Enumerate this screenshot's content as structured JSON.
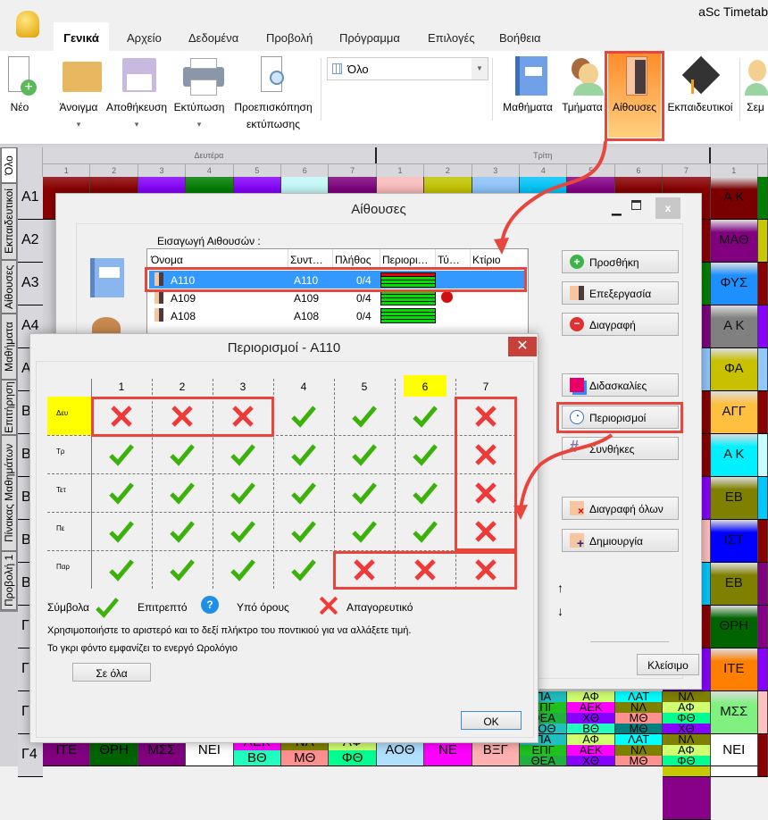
{
  "app": {
    "title": "aSc Timetab"
  },
  "tabs": [
    "Γενικά",
    "Αρχείο",
    "Δεδομένα",
    "Προβολή",
    "Πρόγραμμα",
    "Επιλογές",
    "Βοήθεια"
  ],
  "ribbon": {
    "buttons": [
      {
        "label": "Νέο",
        "icon": "new-file-icon"
      },
      {
        "label": "Άνοιγμα",
        "icon": "folder-icon",
        "drop": "▾"
      },
      {
        "label": "Αποθήκευση",
        "icon": "floppy-icon",
        "drop": "▾"
      },
      {
        "label": "Εκτύπωση",
        "icon": "printer-icon",
        "drop": "▾"
      },
      {
        "label": "Προεπισκόπηση",
        "label2": "εκτύπωσης",
        "icon": "print-preview-icon"
      }
    ],
    "combo": "Όλο",
    "views": [
      {
        "label": "Μαθήματα",
        "icon": "book-icon"
      },
      {
        "label": "Τμήματα",
        "icon": "people-icon"
      },
      {
        "label": "Αίθουσες",
        "icon": "door-icon"
      },
      {
        "label": "Εκπαιδευτικοί",
        "icon": "graduation-cap-icon"
      },
      {
        "label": "Σεμ",
        "icon": "person-icon"
      }
    ]
  },
  "sidetabs": [
    "Όλο",
    "Εκπαιδευτικοί",
    "Αίθουσες",
    "Μαθήματα",
    "Επιτήρηση",
    "Πίνακας Μαθημάτων",
    "Προβολή 1"
  ],
  "timetable": {
    "days": [
      "Δευτέρα",
      "Τρίτη"
    ],
    "periods": [
      "1",
      "2",
      "3",
      "4",
      "5",
      "6",
      "7"
    ],
    "rows": [
      "A1",
      "A2",
      "A3",
      "A4",
      "A",
      "B",
      "B",
      "B",
      "B",
      "B",
      "Γ",
      "Γ",
      "Γ",
      "Γ4"
    ],
    "a1_colors": [
      "#8b0000",
      "#8b0000",
      "#8800ff",
      "#008000",
      "#8800ff",
      "#c8ffff",
      "#800080",
      "#ffc0c0",
      "#c8c800",
      "#90c8ff",
      "#00c8ff",
      "#880088",
      "#8b0000",
      "#8b0000"
    ],
    "right_col": [
      {
        "t": "Α Κ",
        "c": "#7a0000"
      },
      {
        "t": "ΜΑΘ",
        "c": "#800080"
      },
      {
        "t": "ΦΥΣ",
        "c": "#1e8fff"
      },
      {
        "t": "Α Κ",
        "c": "#808080"
      },
      {
        "t": "ΦΑ",
        "c": "#c8c000"
      },
      {
        "t": "ΑΓΓ",
        "c": "#ffc040"
      },
      {
        "t": "Α Κ",
        "c": "#00f0ff"
      },
      {
        "t": "ΕΒ",
        "c": "#808000"
      },
      {
        "t": "ΙΣΤ",
        "c": "#0000ff"
      },
      {
        "t": "ΕΒ",
        "c": "#808000"
      },
      {
        "t": "ΘΡΗ",
        "c": "#006400"
      },
      {
        "t": "ΙΤΕ",
        "c": "#ff8000"
      },
      {
        "t": "ΜΣΣ",
        "c": "#80f080"
      },
      {
        "t": "ΝΕΙ",
        "c": "#ffffff"
      }
    ],
    "gamma_row": [
      [
        {
          "t": "ΠΑ",
          "c": "#20c0c0"
        },
        {
          "t": "ΕΠΓ",
          "c": "#20c020"
        },
        {
          "t": "ΘΕΑ",
          "c": "#20b040"
        },
        {
          "t": "ΑΟΘ",
          "c": "#20c0c0"
        }
      ],
      [
        {
          "t": "ΑΦ",
          "c": "#d0ff70"
        },
        {
          "t": "ΑΕΚ",
          "c": "#ff00ff"
        },
        {
          "t": "ΧΘ",
          "c": "#8800ff"
        },
        {
          "t": "ΒΘ",
          "c": "#20ffc0"
        }
      ],
      [
        {
          "t": "ΛΑΤ",
          "c": "#00ffff"
        },
        {
          "t": "ΝΛ",
          "c": "#808000"
        },
        {
          "t": "ΜΘ",
          "c": "#ff9090"
        },
        {
          "t": "ΜΘ",
          "c": "#008080"
        }
      ],
      [
        {
          "t": "ΝΛ",
          "c": "#808000"
        },
        {
          "t": "ΑΦ",
          "c": "#d0ff70"
        },
        {
          "t": "ΦΘ",
          "c": "#00ff90"
        },
        {
          "t": "ΧΘ",
          "c": "#8800ff"
        }
      ]
    ],
    "g4_row": [
      [
        {
          "t": "ΙΤΕ",
          "c": "#800080"
        }
      ],
      [
        {
          "t": "ΘΡΗ",
          "c": "#006400"
        }
      ],
      [
        {
          "t": "ΜΣΣ",
          "c": "#800080"
        }
      ],
      [
        {
          "t": "ΝΕΙ",
          "c": "#ffffff"
        }
      ],
      [
        {
          "t": "ΑΕΚ",
          "c": "#ff00ff"
        },
        {
          "t": "ΒΘ",
          "c": "#20ffc0"
        }
      ],
      [
        {
          "t": "ΝΛ",
          "c": "#808000"
        },
        {
          "t": "ΜΘ",
          "c": "#ff9090"
        }
      ],
      [
        {
          "t": "ΑΦ",
          "c": "#d0ff70"
        },
        {
          "t": "ΦΘ",
          "c": "#00ff90"
        }
      ],
      [
        {
          "t": "ΑΟΘ",
          "c": "#b0e0ff"
        }
      ],
      [
        {
          "t": "ΝΕ",
          "c": "#ff00ff"
        }
      ],
      [
        {
          "t": "ΒΞΓ",
          "c": "#ffb0b0"
        }
      ],
      [
        {
          "t": "ΠΑ",
          "c": "#20c0c0"
        },
        {
          "t": "ΕΠΓ",
          "c": "#20c020"
        },
        {
          "t": "ΘΕΑ",
          "c": "#20b040"
        }
      ],
      [
        {
          "t": "ΑΦ",
          "c": "#d0ff70"
        },
        {
          "t": "ΑΕΚ",
          "c": "#ff00ff"
        },
        {
          "t": "ΧΘ",
          "c": "#8800ff"
        }
      ],
      [
        {
          "t": "ΛΑΤ",
          "c": "#00ffff"
        },
        {
          "t": "ΝΛ",
          "c": "#808000"
        },
        {
          "t": "ΜΘ",
          "c": "#ff9090"
        }
      ],
      [
        {
          "t": "ΝΛ",
          "c": "#808000"
        },
        {
          "t": "ΑΦ",
          "c": "#d0ff70"
        },
        {
          "t": "ΦΘ",
          "c": "#00ff90"
        }
      ],
      [
        {
          "t": "ΝΕΙ",
          "c": "#ffffff"
        }
      ]
    ]
  },
  "rooms_dialog": {
    "title": "Αίθουσες",
    "list_label": "Εισαγωγή Αιθουσών :",
    "columns": [
      "Όνομα",
      "Συντ…",
      "Πλήθος",
      "Περιορι…",
      "Τύ…",
      "Κτίριο"
    ],
    "rows": [
      {
        "name": "A110",
        "short": "A110",
        "count": "0/4",
        "selected": true
      },
      {
        "name": "A109",
        "short": "A109",
        "count": "0/4",
        "type_icon": "no-entry-icon"
      },
      {
        "name": "A108",
        "short": "A108",
        "count": "0/4"
      }
    ],
    "buttons": {
      "add": "Προσθήκη",
      "edit": "Επεξεργασία",
      "delete": "Διαγραφή",
      "lessons": "Διδασκαλίες",
      "constraints": "Περιορισμοί",
      "conditions": "Συνθήκες",
      "delete_all": "Διαγραφή όλων",
      "create": "Δημιουργία",
      "close": "Κλείσιμο",
      "up": "↑",
      "down": "↓"
    }
  },
  "constraints_dialog": {
    "title": "Περιορισμοί - A110",
    "periods": [
      "1",
      "2",
      "3",
      "4",
      "5",
      "6",
      "7"
    ],
    "highlight_period": "6",
    "days": [
      "Δευ",
      "Τρ",
      "Τετ",
      "Πε",
      "Παρ"
    ],
    "highlight_day": "Δευ",
    "matrix": [
      [
        "X",
        "X",
        "X",
        "V",
        "V",
        "V",
        "X"
      ],
      [
        "V",
        "V",
        "V",
        "V",
        "V",
        "V",
        "X"
      ],
      [
        "V",
        "V",
        "V",
        "V",
        "V",
        "V",
        "X"
      ],
      [
        "V",
        "V",
        "V",
        "V",
        "V",
        "V",
        "X"
      ],
      [
        "V",
        "V",
        "V",
        "V",
        "X",
        "X",
        "X"
      ]
    ],
    "legend": {
      "title": "Σύμβολα",
      "allowed": "Επιτρεπτό",
      "conditional": "Υπό όρους",
      "forbidden": "Απαγορευτικό"
    },
    "help1": "Χρησιμοποιήστε το αριστερό και το δεξί πλήκτρο του ποντικιού για να αλλάξετε τιμή.",
    "help2": "Το γκρι φόντο εμφανίζει το ενεργό Ωρολόγιο",
    "all_button": "Σε όλα",
    "ok_button": "OK"
  },
  "colors": {
    "accent_red": "#e8453c",
    "allowed": "#3cb10a",
    "forbidden": "#f03a3a",
    "selection": "#3399ff",
    "highlight": "#ffff00",
    "room_button": "#ff9933"
  }
}
